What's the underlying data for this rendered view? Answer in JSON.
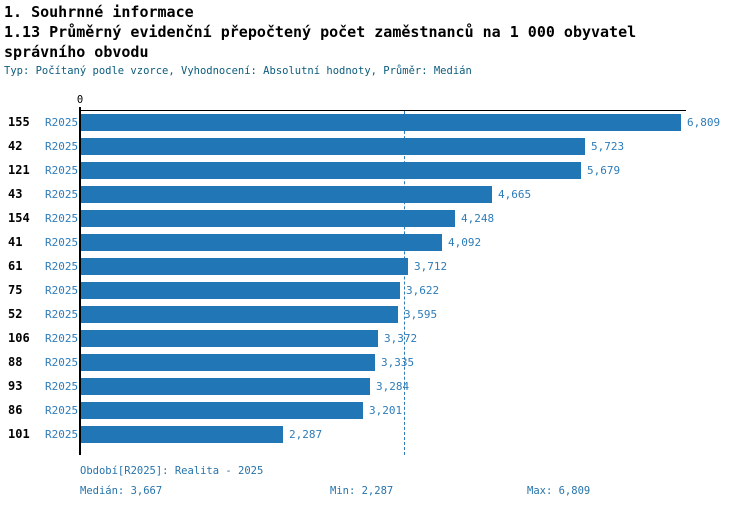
{
  "header": {
    "section_title": "1. Souhrnné informace",
    "chart_title": "1.13 Průměrný evidenční přepočtený počet zaměstnanců na 1 000 obyvatel správního obvodu",
    "meta_line": "Typ: Počítaný podle vzorce, Vyhodnocení: Absolutní hodnoty, Průměr: Medián"
  },
  "chart_data": {
    "type": "bar",
    "orientation": "horizontal",
    "title": "1.13 Průměrný evidenční přepočtený počet zaměstnanců na 1 000 obyvatel správního obvodu",
    "categories": [
      "155",
      "42",
      "121",
      "43",
      "154",
      "41",
      "61",
      "75",
      "52",
      "106",
      "88",
      "93",
      "86",
      "101"
    ],
    "series": [
      {
        "name": "R2025",
        "values": [
          6809,
          5723,
          5679,
          4665,
          4248,
          4092,
          3712,
          3622,
          3595,
          3372,
          3335,
          3284,
          3201,
          2287
        ]
      }
    ],
    "value_labels": [
      "6,809",
      "5,723",
      "5,679",
      "4,665",
      "4,248",
      "4,092",
      "3,712",
      "3,622",
      "3,595",
      "3,372",
      "3,335",
      "3,284",
      "3,201",
      "2,287"
    ],
    "series_row_label": "R2025",
    "zero_tick_label": "0",
    "xlim": [
      0,
      6809
    ],
    "median_value": 3667,
    "grid": false,
    "legend_position": "none",
    "colors": {
      "bar": "#2176b5",
      "median_line": "#2f7cb6",
      "value_text": "#2e7cb8",
      "category_text": "#000000",
      "meta_text": "#0d5c7d",
      "footer_text": "#2674ab"
    }
  },
  "footer": {
    "period_label": "Období[R2025]: Realita - 2025",
    "median_label": "Medián: 3,667",
    "min_label": "Min: 2,287",
    "max_label": "Max: 6,809"
  }
}
